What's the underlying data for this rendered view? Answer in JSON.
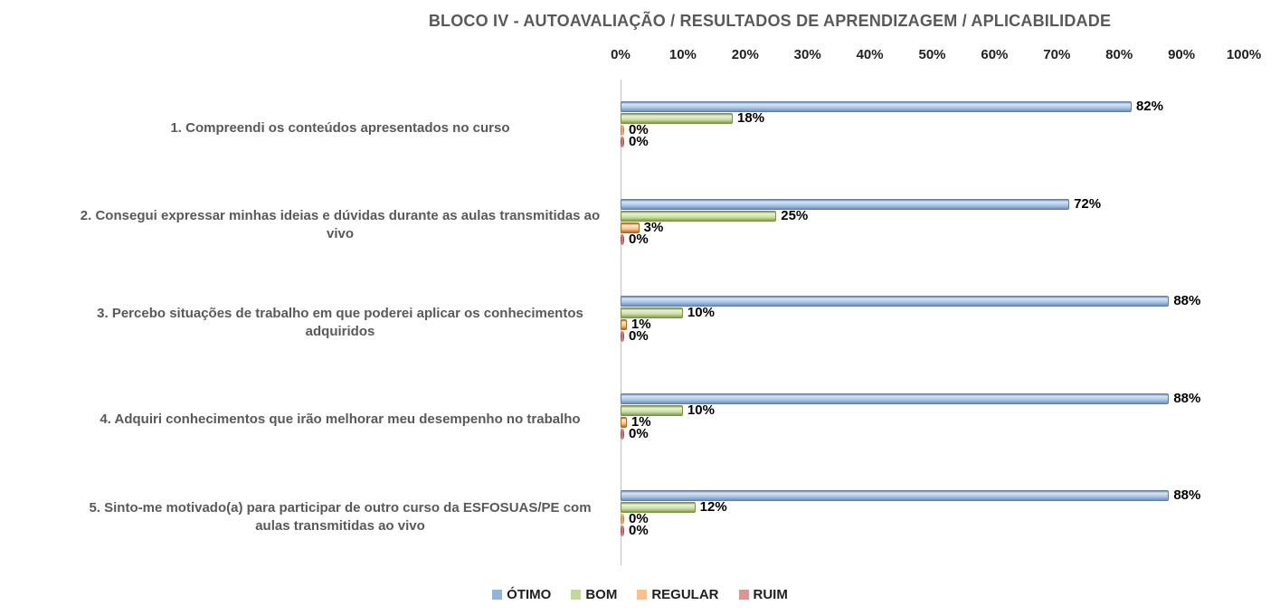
{
  "chart_data": {
    "type": "bar",
    "orientation": "horizontal",
    "title": "BLOCO IV - AUTOAVALIAÇÃO / RESULTADOS DE APRENDIZAGEM / APLICABILIDADE",
    "categories": [
      "1. Compreendi os conteúdos apresentados no curso",
      "2. Consegui expressar minhas ideias e dúvidas durante as aulas transmitidas ao vivo",
      "3. Percebo situações de trabalho em que poderei aplicar os conhecimentos adquiridos",
      "4. Adquiri conhecimentos que irão melhorar meu desempenho no trabalho",
      "5. Sinto-me motivado(a) para participar de outro curso da ESFOSUAS/PE com aulas transmitidas ao vivo"
    ],
    "series": [
      {
        "name": "ÓTIMO",
        "values": [
          82,
          72,
          88,
          88,
          88
        ],
        "legend_color": "#95B3D7",
        "fill_light": "#d9e5f5",
        "fill_mid": "#a6c3ea",
        "fill_dark": "#7090b8",
        "border": "#637ea4"
      },
      {
        "name": "BOM",
        "values": [
          18,
          25,
          10,
          10,
          12
        ],
        "legend_color": "#C3D69B",
        "fill_light": "#e9f0d8",
        "fill_mid": "#cadfa2",
        "fill_dark": "#84995a",
        "border": "#77933C"
      },
      {
        "name": "REGULAR",
        "values": [
          0,
          3,
          1,
          1,
          0
        ],
        "legend_color": "#FAC090",
        "fill_light": "#fdebd2",
        "fill_mid": "#fbc18e",
        "fill_dark": "#b06d1e",
        "border": "#a96a24"
      },
      {
        "name": "RUIM",
        "values": [
          0,
          0,
          0,
          0,
          0
        ],
        "legend_color": "#D99694",
        "fill_light": "#eccfce",
        "fill_mid": "#d99694",
        "fill_dark": "#97423f",
        "border": "#8a3634"
      }
    ],
    "ticks": [
      "0%",
      "10%",
      "20%",
      "30%",
      "40%",
      "50%",
      "60%",
      "70%",
      "80%",
      "90%",
      "100%"
    ],
    "xlim": [
      0,
      100
    ],
    "value_suffix": "%",
    "grid": false,
    "legend_position": "bottom",
    "axis_line_color": "#bfbfbf",
    "text_colors": {
      "title": "#595959",
      "category": "#595959",
      "tick": "#1f1f1f",
      "value": "#000000",
      "legend": "#1f1f1f"
    }
  }
}
